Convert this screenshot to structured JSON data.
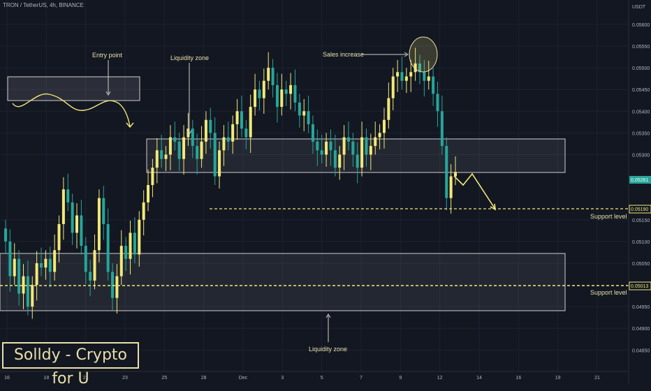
{
  "header": {
    "symbol": "TRON / TetherUS, 4h, BINANCE",
    "currency": "USDT"
  },
  "branding": {
    "text": "Solldy - Crypto for U"
  },
  "colors": {
    "up": "#f2e879",
    "down": "#26a69a",
    "level": "#f2e879",
    "background": "#131722"
  },
  "annotations": {
    "entry_point": "Entry point",
    "liquidity_zone_top": "Liquidity zone",
    "sales_increase": "Sales increase",
    "liquidity_zone_bottom": "Liquidity zone",
    "support_level_1": "Support level",
    "support_level_2": "Support level"
  },
  "price_tags": {
    "current": "0.05261",
    "support_1": "0.05190",
    "support_2": "0.05013"
  },
  "chart_data": {
    "type": "candlestick",
    "title": "TRON / TetherUS, 4h, BINANCE",
    "y_unit": "USDT",
    "x_ticks": [
      "16",
      "18",
      "21",
      "23",
      "25",
      "28",
      "Dec",
      "3",
      "5",
      "7",
      "9",
      "12",
      "14",
      "16",
      "19",
      "21"
    ],
    "y_ticks": [
      "0.05600",
      "0.05550",
      "0.05500",
      "0.05450",
      "0.05400",
      "0.05350",
      "0.05300",
      "0.05150",
      "0.05100",
      "0.05050",
      "0.04950",
      "0.04900",
      "0.04850"
    ],
    "ylim": [
      0.0482,
      0.0564
    ],
    "zones": [
      {
        "label": "Entry point",
        "price_range": [
          0.0545,
          0.055
        ]
      },
      {
        "label": "Liquidity zone",
        "price_range": [
          0.0528,
          0.0536
        ]
      },
      {
        "label": "Liquidity zone",
        "price_range": [
          0.0496,
          0.0509
        ]
      }
    ],
    "levels": [
      {
        "name": "Support level",
        "price": 0.0519
      },
      {
        "name": "Support level",
        "price": 0.05013
      }
    ],
    "last_price": 0.05261,
    "closes": [
      0.051,
      0.0502,
      0.0506,
      0.0498,
      0.0502,
      0.0495,
      0.05,
      0.0505,
      0.0504,
      0.0506,
      0.0503,
      0.0508,
      0.0514,
      0.0522,
      0.0519,
      0.0512,
      0.0516,
      0.0509,
      0.0503,
      0.0501,
      0.0508,
      0.052,
      0.0514,
      0.0503,
      0.0497,
      0.0502,
      0.0509,
      0.0506,
      0.0512,
      0.0507,
      0.0515,
      0.0519,
      0.0523,
      0.0527,
      0.0531,
      0.0529,
      0.053,
      0.0534,
      0.0533,
      0.0529,
      0.0534,
      0.0536,
      0.0532,
      0.0529,
      0.0533,
      0.0538,
      0.0535,
      0.0525,
      0.0531,
      0.0534,
      0.0533,
      0.0537,
      0.054,
      0.0536,
      0.0534,
      0.0541,
      0.0545,
      0.0543,
      0.0547,
      0.055,
      0.0546,
      0.0541,
      0.0545,
      0.0544,
      0.0546,
      0.0542,
      0.0539,
      0.054,
      0.0537,
      0.0533,
      0.0531,
      0.053,
      0.0533,
      0.0531,
      0.0527,
      0.053,
      0.0534,
      0.0533,
      0.053,
      0.0527,
      0.0534,
      0.053,
      0.0532,
      0.0534,
      0.0535,
      0.0538,
      0.0543,
      0.0548,
      0.0549,
      0.0547,
      0.0548,
      0.0549,
      0.0551,
      0.0549,
      0.0547,
      0.0548,
      0.0544,
      0.054,
      0.0532,
      0.052,
      0.0525,
      0.0526
    ]
  }
}
